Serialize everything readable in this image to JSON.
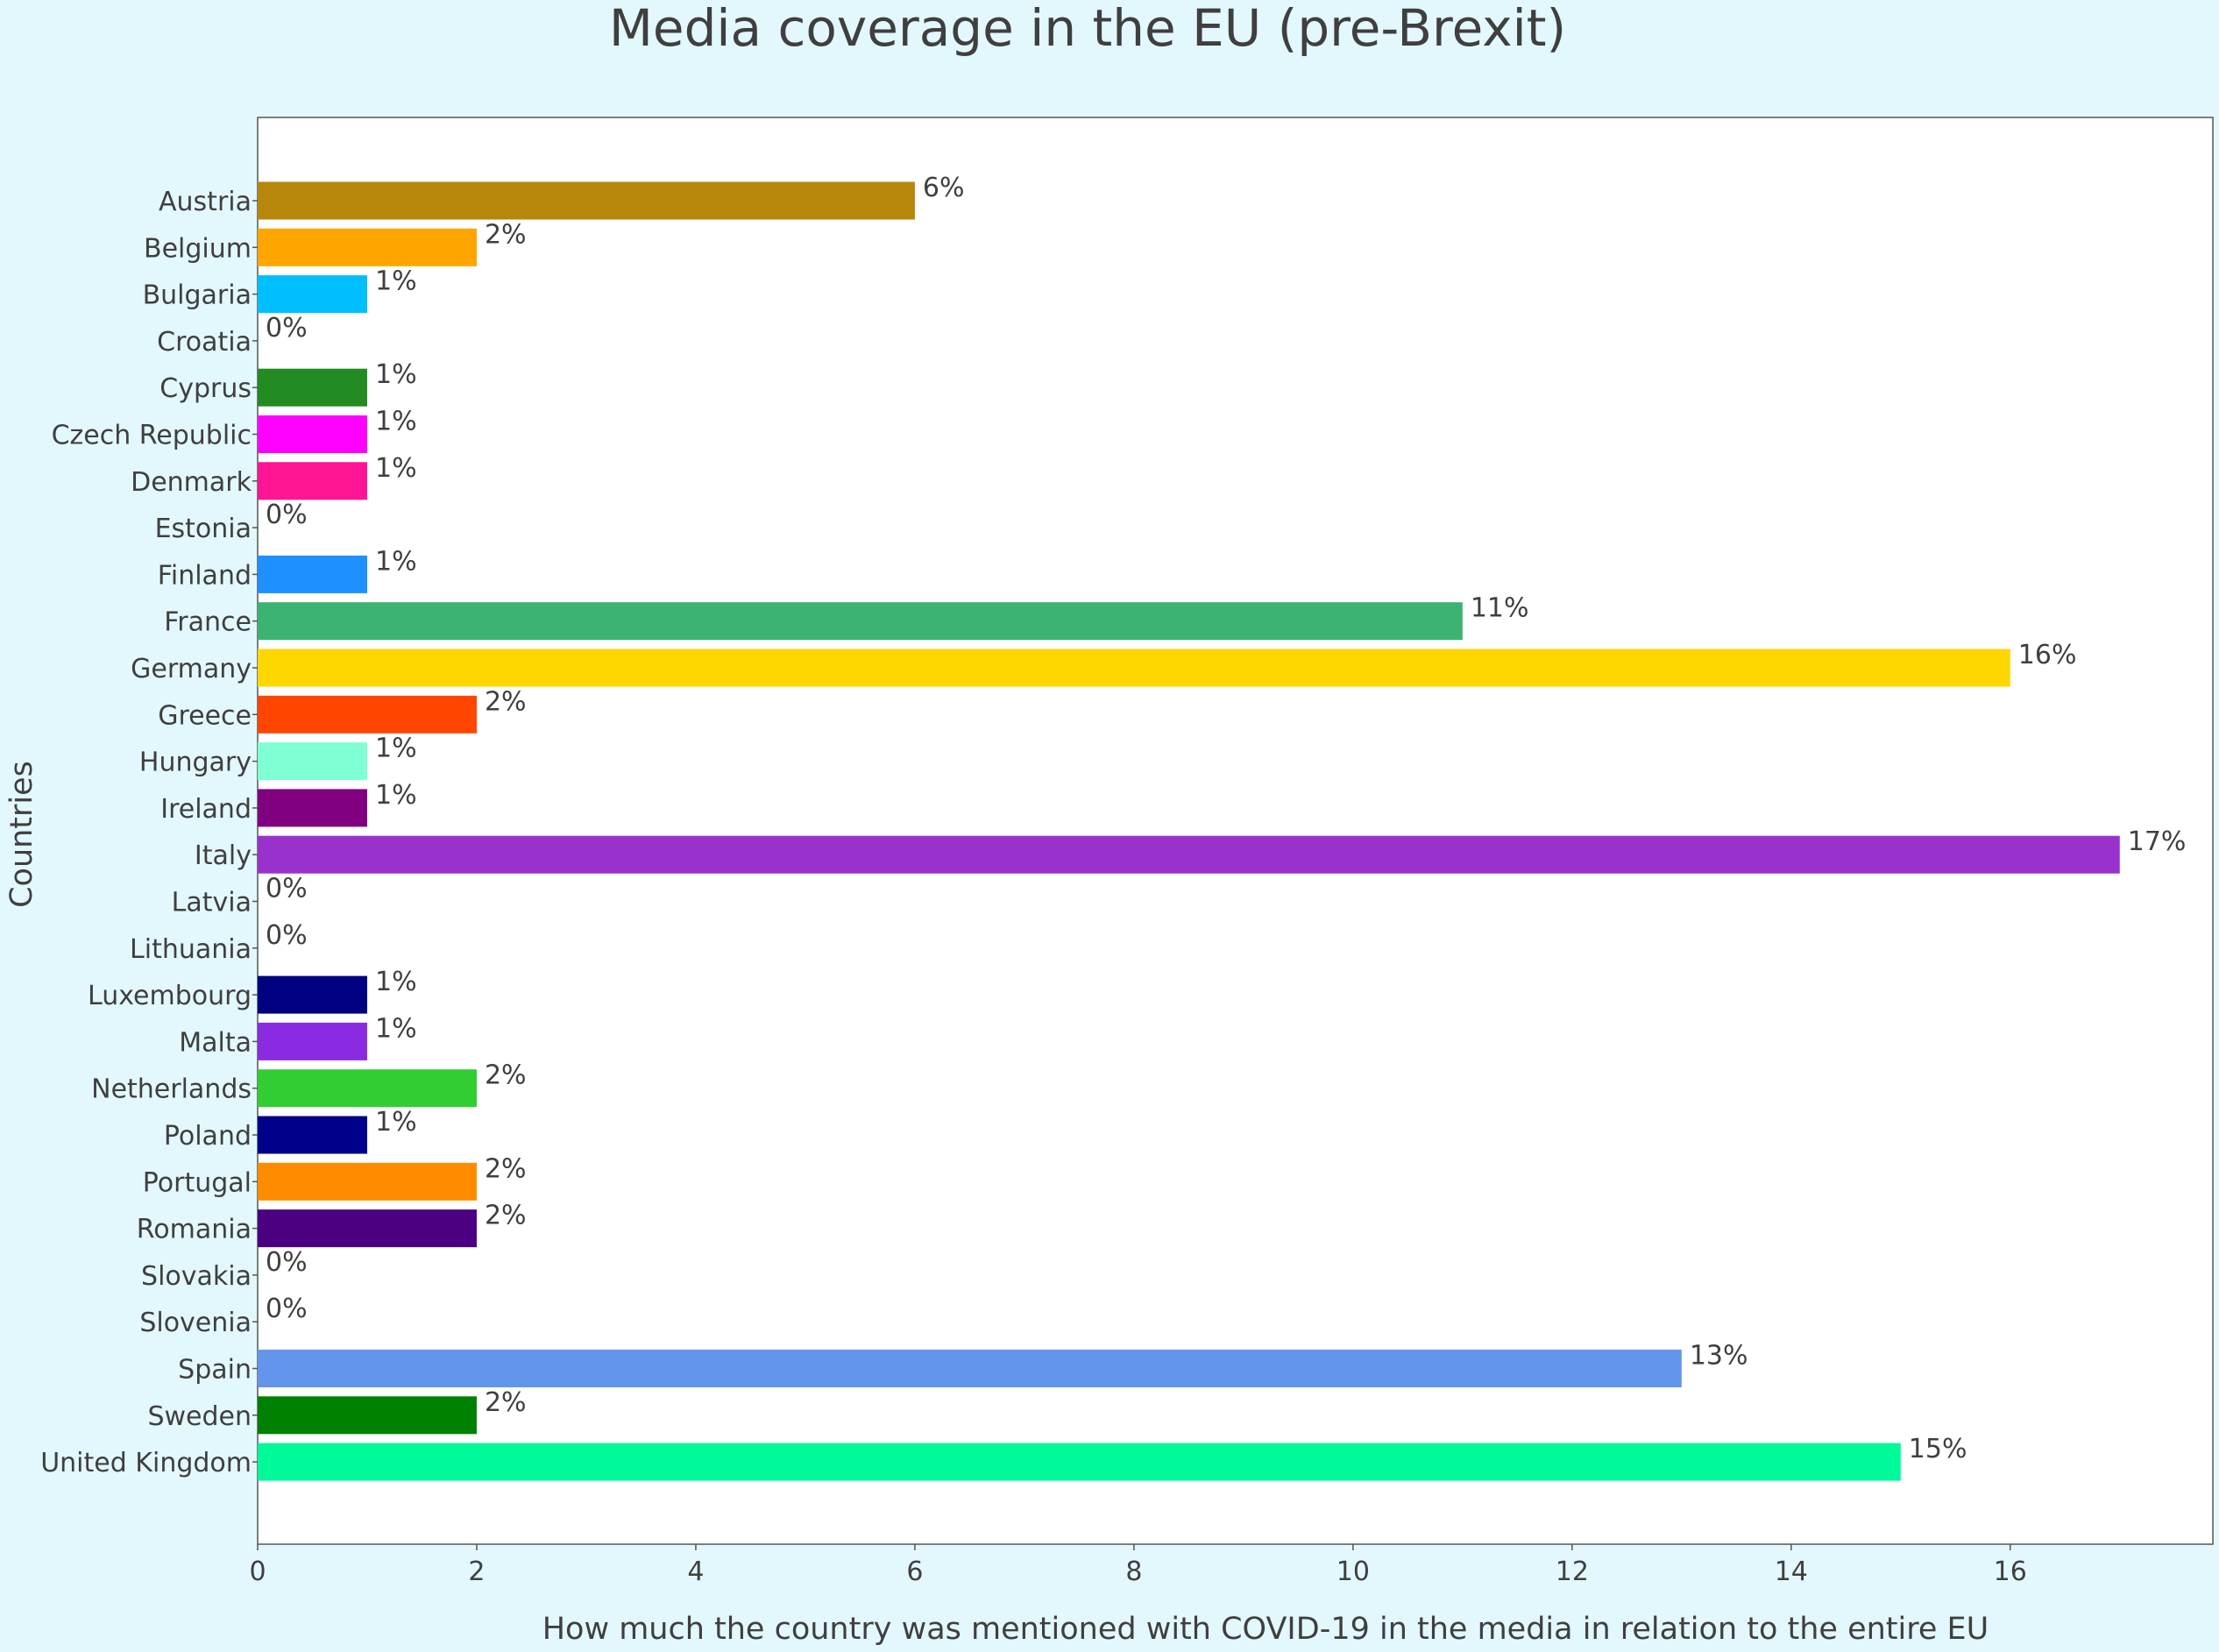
{
  "chart_data": {
    "type": "bar",
    "orientation": "horizontal",
    "title": "Media coverage in the EU (pre-Brexit)",
    "xlabel": "How much the country was mentioned with COVID-19 in the media in relation to the entire EU",
    "ylabel": "Countries",
    "xlim": [
      0,
      17.85
    ],
    "xticks": [
      0,
      2,
      4,
      6,
      8,
      10,
      12,
      14,
      16
    ],
    "grid": false,
    "value_suffix": "%",
    "categories": [
      "Austria",
      "Belgium",
      "Bulgaria",
      "Croatia",
      "Cyprus",
      "Czech Republic",
      "Denmark",
      "Estonia",
      "Finland",
      "France",
      "Germany",
      "Greece",
      "Hungary",
      "Ireland",
      "Italy",
      "Latvia",
      "Lithuania",
      "Luxembourg",
      "Malta",
      "Netherlands",
      "Poland",
      "Portugal",
      "Romania",
      "Slovakia",
      "Slovenia",
      "Spain",
      "Sweden",
      "United Kingdom"
    ],
    "values": [
      6,
      2,
      1,
      0,
      1,
      1,
      1,
      0,
      1,
      11,
      16,
      2,
      1,
      1,
      17,
      0,
      0,
      1,
      1,
      2,
      1,
      2,
      2,
      0,
      0,
      13,
      2,
      15
    ],
    "colors": [
      "#b8860b",
      "#ffa500",
      "#00bfff",
      "#dc143c",
      "#228b22",
      "#ff00ff",
      "#ff1493",
      "#708090",
      "#1e90ff",
      "#3cb371",
      "#ffd700",
      "#ff4500",
      "#7fffd4",
      "#800080",
      "#9932cc",
      "#a52a2a",
      "#808000",
      "#000080",
      "#8a2be2",
      "#32cd32",
      "#00008b",
      "#ff8c00",
      "#4b0082",
      "#696969",
      "#008080",
      "#6495ed",
      "#008000",
      "#00fa9a"
    ]
  }
}
